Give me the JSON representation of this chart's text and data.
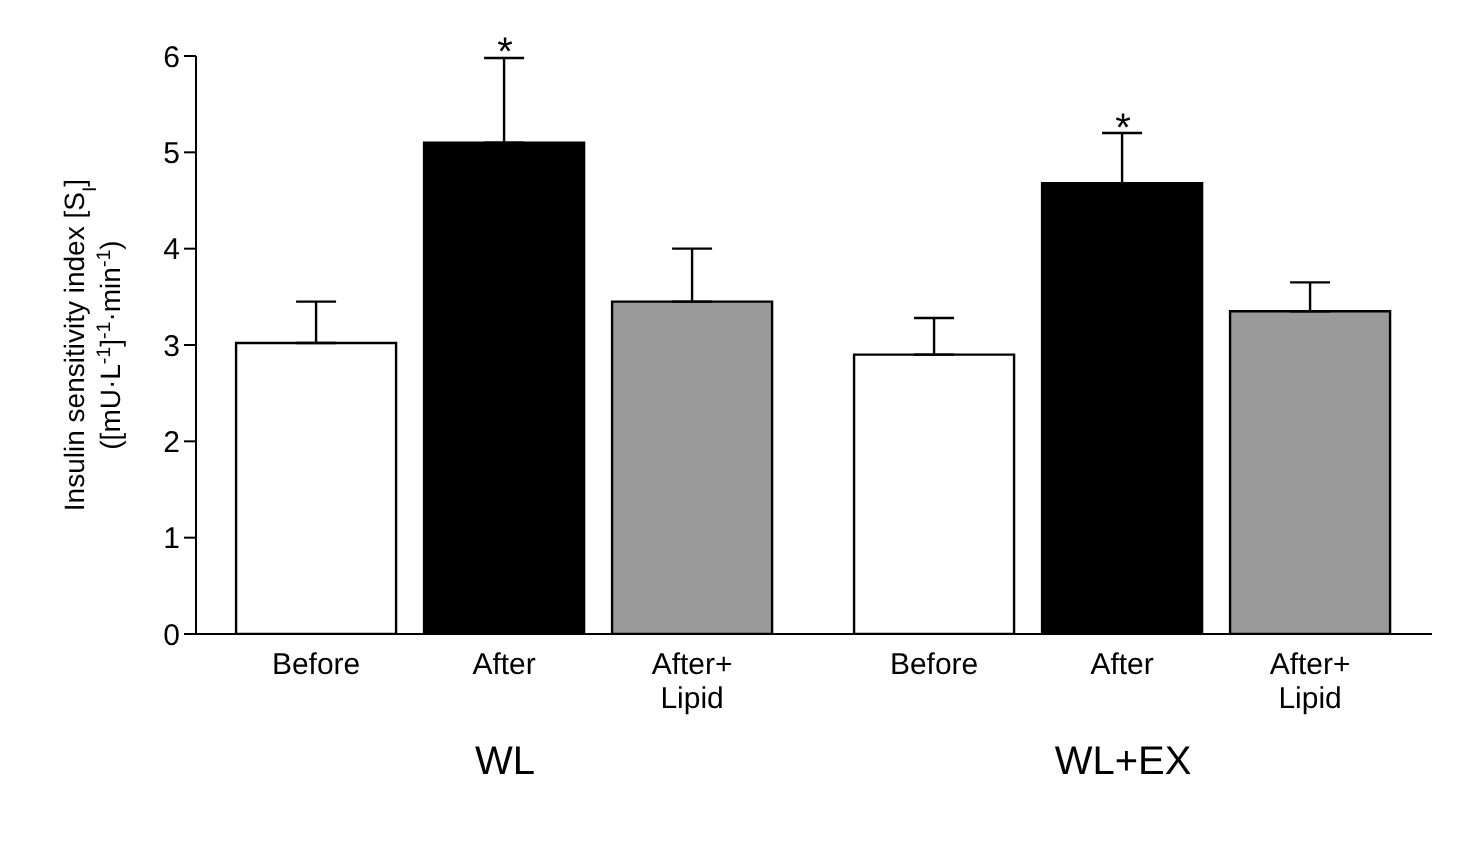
{
  "chart_data": {
    "type": "bar",
    "ylabel": "Insulin sensitivity index [S$_{I}$]\n([mU·L$^{-1}$]$^{-1}$·min$^{-1}$)",
    "categories": [
      "WL",
      "WL+EX"
    ],
    "series": [
      {
        "name": "Before",
        "color": "#ffffff",
        "values": [
          3.02,
          2.9
        ],
        "errors": [
          [
            3.02,
            3.45
          ],
          [
            2.9,
            3.28
          ]
        ]
      },
      {
        "name": "After",
        "color": "#000000",
        "values": [
          5.1,
          4.68
        ],
        "errors": [
          [
            5.1,
            5.98
          ],
          [
            4.68,
            5.2
          ]
        ]
      },
      {
        "name": "After+ Lipid",
        "color": "#9a9a9a",
        "values": [
          3.45,
          3.35
        ],
        "errors": [
          [
            3.45,
            4.0
          ],
          [
            3.35,
            3.65
          ]
        ]
      }
    ],
    "ylim": [
      0,
      6
    ],
    "yticks": [
      0,
      1,
      2,
      3,
      4,
      5,
      6
    ],
    "annotations": [
      {
        "text": "*",
        "x": "WL",
        "y": 6.05
      },
      {
        "text": "*",
        "x": "WL+EX",
        "y": 5.27
      }
    ]
  }
}
